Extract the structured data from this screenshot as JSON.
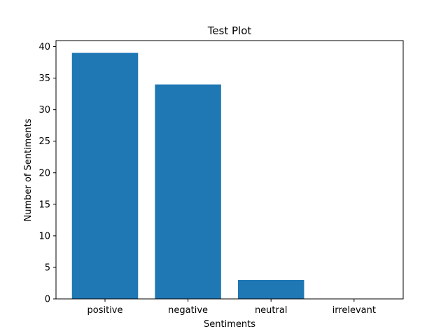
{
  "chart_data": {
    "type": "bar",
    "title": "Test Plot",
    "xlabel": "Sentiments",
    "ylabel": "Number of Sentiments",
    "categories": [
      "positive",
      "negative",
      "neutral",
      "irrelevant"
    ],
    "values": [
      39,
      34,
      3,
      0
    ],
    "ylim": [
      0,
      40.95
    ],
    "yticks": [
      "0",
      "5",
      "10",
      "15",
      "20",
      "25",
      "30",
      "35",
      "40"
    ],
    "bar_color": "#1f77b4",
    "grid": false,
    "legend": "none"
  }
}
